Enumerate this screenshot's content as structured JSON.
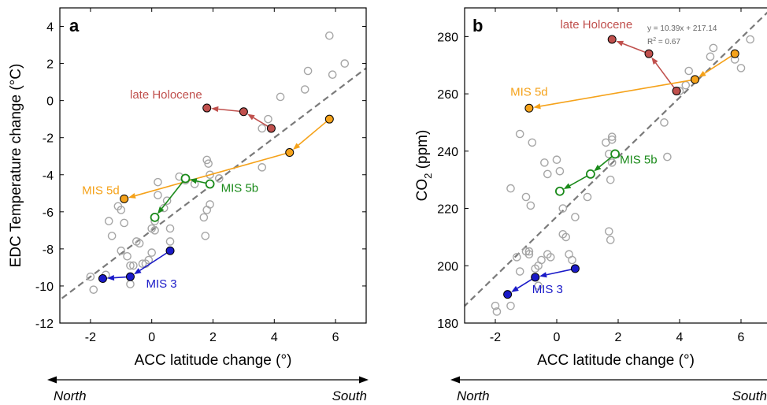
{
  "chart_data": [
    {
      "type": "scatter",
      "panel_label": "a",
      "xlabel": "ACC latitude change (°)",
      "ylabel": "EDC Temperature change (°C)",
      "xlim": [
        -3,
        7
      ],
      "ylim": [
        -12,
        5
      ],
      "xticks": [
        -2,
        0,
        2,
        4,
        6
      ],
      "yticks": [
        -12,
        -10,
        -8,
        -6,
        -4,
        -2,
        0,
        2,
        4
      ],
      "grid": false,
      "background_points": [
        [
          -1.9,
          -10.2
        ],
        [
          -2.0,
          -9.5
        ],
        [
          -1.5,
          -9.4
        ],
        [
          -1.4,
          -6.5
        ],
        [
          -1.3,
          -7.3
        ],
        [
          -1.1,
          -5.7
        ],
        [
          -1.0,
          -5.9
        ],
        [
          -0.9,
          -6.6
        ],
        [
          -1.0,
          -8.1
        ],
        [
          -0.8,
          -8.4
        ],
        [
          -0.7,
          -8.9
        ],
        [
          -0.6,
          -8.9
        ],
        [
          -0.7,
          -9.9
        ],
        [
          -0.5,
          -7.6
        ],
        [
          -0.4,
          -7.7
        ],
        [
          -0.3,
          -8.8
        ],
        [
          -0.2,
          -8.8
        ],
        [
          -0.1,
          -8.6
        ],
        [
          0.0,
          -8.2
        ],
        [
          0.0,
          -6.9
        ],
        [
          0.1,
          -7.0
        ],
        [
          0.1,
          -6.5
        ],
        [
          0.2,
          -5.1
        ],
        [
          0.2,
          -4.4
        ],
        [
          0.4,
          -5.8
        ],
        [
          0.5,
          -5.4
        ],
        [
          0.6,
          -6.9
        ],
        [
          0.6,
          -7.6
        ],
        [
          0.9,
          -4.1
        ],
        [
          1.1,
          -4.3
        ],
        [
          1.4,
          -4.5
        ],
        [
          1.8,
          -3.2
        ],
        [
          1.85,
          -3.4
        ],
        [
          1.9,
          -4.0
        ],
        [
          1.9,
          -5.6
        ],
        [
          1.8,
          -5.9
        ],
        [
          1.7,
          -6.3
        ],
        [
          1.75,
          -7.3
        ],
        [
          2.2,
          -4.2
        ],
        [
          3.6,
          -1.5
        ],
        [
          3.8,
          -1.0
        ],
        [
          3.6,
          -3.6
        ],
        [
          4.2,
          0.2
        ],
        [
          5.0,
          0.6
        ],
        [
          5.1,
          1.6
        ],
        [
          5.8,
          3.5
        ],
        [
          5.9,
          1.4
        ],
        [
          6.3,
          2.0
        ]
      ],
      "series": [
        {
          "name": "late Holocene",
          "color": "#c0504d",
          "points": [
            [
              3.9,
              -1.5
            ],
            [
              3.0,
              -0.6
            ],
            [
              1.8,
              -0.4
            ]
          ],
          "marker": "filled"
        },
        {
          "name": "MIS 5d",
          "color": "#f5a21a",
          "points": [
            [
              5.8,
              -1.0
            ],
            [
              4.5,
              -2.8
            ],
            [
              -0.9,
              -5.3
            ]
          ],
          "marker": "filled"
        },
        {
          "name": "MIS 5b",
          "color": "#1a8a1a",
          "points": [
            [
              1.9,
              -4.5
            ],
            [
              1.1,
              -4.2
            ],
            [
              0.1,
              -6.3
            ]
          ],
          "marker": "open"
        },
        {
          "name": "MIS 3",
          "color": "#1a1ac8",
          "points": [
            [
              0.6,
              -8.1
            ],
            [
              -0.7,
              -9.5
            ],
            [
              -1.6,
              -9.6
            ]
          ],
          "marker": "filled"
        }
      ],
      "regression_line": {
        "slope": 1.25,
        "intercept": -7.0
      },
      "direction_left": "North",
      "direction_right": "South"
    },
    {
      "type": "scatter",
      "panel_label": "b",
      "xlabel": "ACC latitude change (°)",
      "ylabel": "CO",
      "ylabel_subscript": "2",
      "ylabel_suffix": " (ppm)",
      "xlim": [
        -3,
        7
      ],
      "ylim": [
        180,
        290
      ],
      "xticks": [
        -2,
        0,
        2,
        4,
        6
      ],
      "yticks": [
        180,
        200,
        220,
        240,
        260,
        280
      ],
      "grid": false,
      "equation": "y = 10.39x + 217.14",
      "r2_text": "R",
      "r2_sup": "2",
      "r2_value": " = 0.67",
      "background_points": [
        [
          -2.0,
          186
        ],
        [
          -1.95,
          184
        ],
        [
          -1.5,
          186
        ],
        [
          -1.5,
          227
        ],
        [
          -1.3,
          203
        ],
        [
          -1.2,
          198
        ],
        [
          -1.0,
          205
        ],
        [
          -0.9,
          204
        ],
        [
          -0.85,
          221
        ],
        [
          -0.9,
          205
        ],
        [
          -1.0,
          224
        ],
        [
          -0.7,
          199
        ],
        [
          -0.6,
          200
        ],
        [
          -0.5,
          202
        ],
        [
          -0.3,
          204
        ],
        [
          -0.2,
          203
        ],
        [
          -0.6,
          193
        ],
        [
          -1.2,
          246
        ],
        [
          -0.8,
          243
        ],
        [
          -0.4,
          236
        ],
        [
          -0.3,
          232
        ],
        [
          0.0,
          237
        ],
        [
          0.1,
          233
        ],
        [
          0.2,
          220
        ],
        [
          0.2,
          211
        ],
        [
          0.3,
          210
        ],
        [
          0.4,
          204
        ],
        [
          0.5,
          202
        ],
        [
          0.6,
          217
        ],
        [
          1.0,
          224
        ],
        [
          1.6,
          243
        ],
        [
          1.7,
          239
        ],
        [
          1.8,
          244
        ],
        [
          1.8,
          245
        ],
        [
          1.8,
          236
        ],
        [
          1.75,
          230
        ],
        [
          1.7,
          212
        ],
        [
          1.75,
          209
        ],
        [
          3.5,
          250
        ],
        [
          3.6,
          238
        ],
        [
          4.0,
          261
        ],
        [
          4.2,
          263
        ],
        [
          4.3,
          268
        ],
        [
          5.0,
          273
        ],
        [
          5.1,
          276
        ],
        [
          5.8,
          272
        ],
        [
          6.0,
          269
        ],
        [
          6.3,
          279
        ]
      ],
      "series": [
        {
          "name": "late Holocene",
          "color": "#c0504d",
          "points": [
            [
              3.9,
              261
            ],
            [
              3.0,
              274
            ],
            [
              1.8,
              279
            ]
          ],
          "marker": "filled"
        },
        {
          "name": "MIS 5d",
          "color": "#f5a21a",
          "points": [
            [
              5.8,
              274
            ],
            [
              4.5,
              265
            ],
            [
              -0.9,
              255
            ]
          ],
          "marker": "filled"
        },
        {
          "name": "MIS 5b",
          "color": "#1a8a1a",
          "points": [
            [
              1.9,
              239
            ],
            [
              1.1,
              232
            ],
            [
              0.1,
              226
            ]
          ],
          "marker": "open"
        },
        {
          "name": "MIS 3",
          "color": "#1a1ac8",
          "points": [
            [
              0.6,
              199
            ],
            [
              -0.7,
              196
            ],
            [
              -1.6,
              190
            ]
          ],
          "marker": "filled"
        }
      ],
      "regression_line": {
        "slope": 10.39,
        "intercept": 217.14
      },
      "direction_left": "North",
      "direction_right": "South"
    }
  ]
}
